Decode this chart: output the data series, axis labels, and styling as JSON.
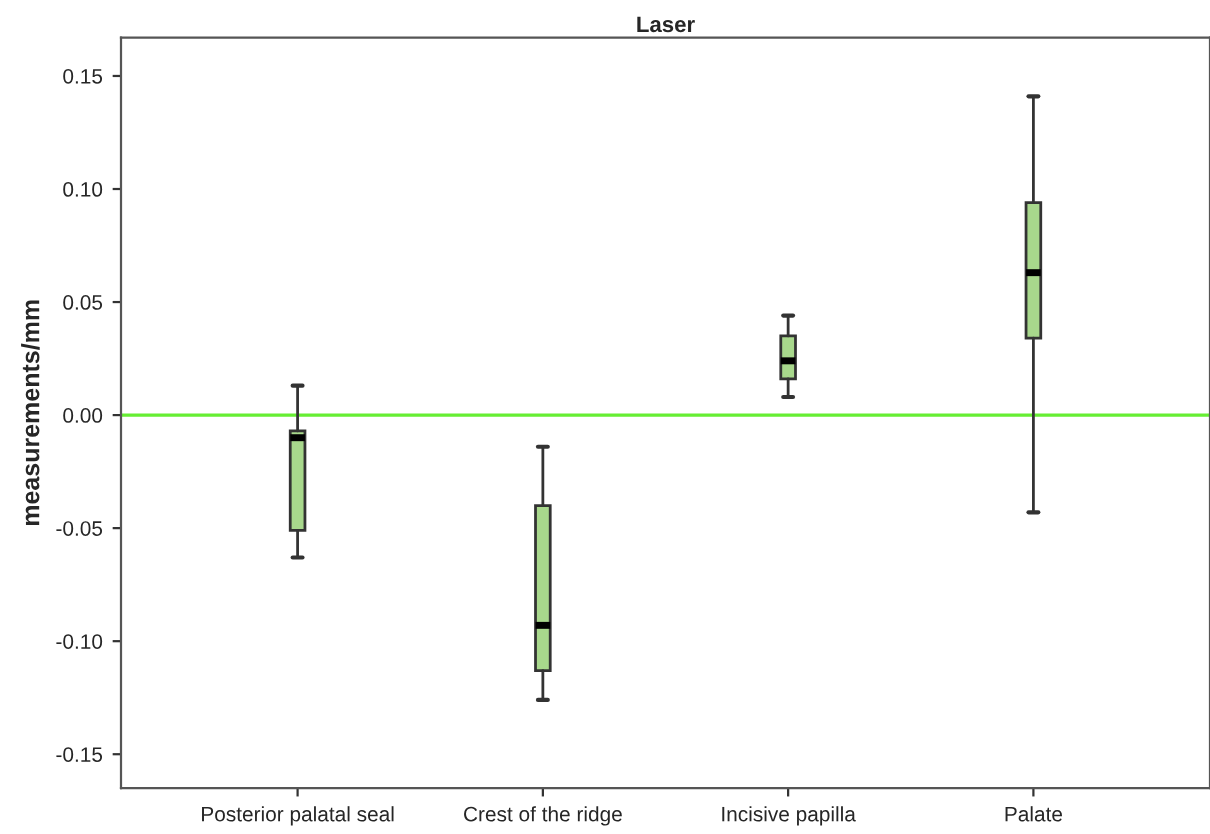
{
  "chart_data": {
    "type": "box",
    "title": "Laser",
    "ylabel": "measurements/mm",
    "categories": [
      "Posterior palatal seal",
      "Crest of the ridge",
      "Incisive papilla",
      "Palate"
    ],
    "boxes": [
      {
        "low": -0.063,
        "q1": -0.051,
        "median": -0.01,
        "q3": -0.007,
        "high": 0.013
      },
      {
        "low": -0.126,
        "q1": -0.113,
        "median": -0.093,
        "q3": -0.04,
        "high": -0.014
      },
      {
        "low": 0.008,
        "q1": 0.016,
        "median": 0.024,
        "q3": 0.035,
        "high": 0.044
      },
      {
        "low": -0.043,
        "q1": 0.034,
        "median": 0.063,
        "q3": 0.094,
        "high": 0.141
      }
    ],
    "color": "#a8d88c",
    "ylim": [
      -0.165,
      0.167
    ],
    "yticks": [
      {
        "value": -0.15,
        "label": "-0.15"
      },
      {
        "value": -0.1,
        "label": "-0.10"
      },
      {
        "value": -0.05,
        "label": "-0.05"
      },
      {
        "value": 0,
        "label": "0.00"
      },
      {
        "value": 0.05,
        "label": "0.05"
      },
      {
        "value": 0.1,
        "label": "0.10"
      },
      {
        "value": 0.15,
        "label": "0.15"
      }
    ],
    "ref_lines": [
      {
        "axis": "y",
        "value": 0,
        "color": "#66ee33"
      }
    ],
    "grid": false
  }
}
